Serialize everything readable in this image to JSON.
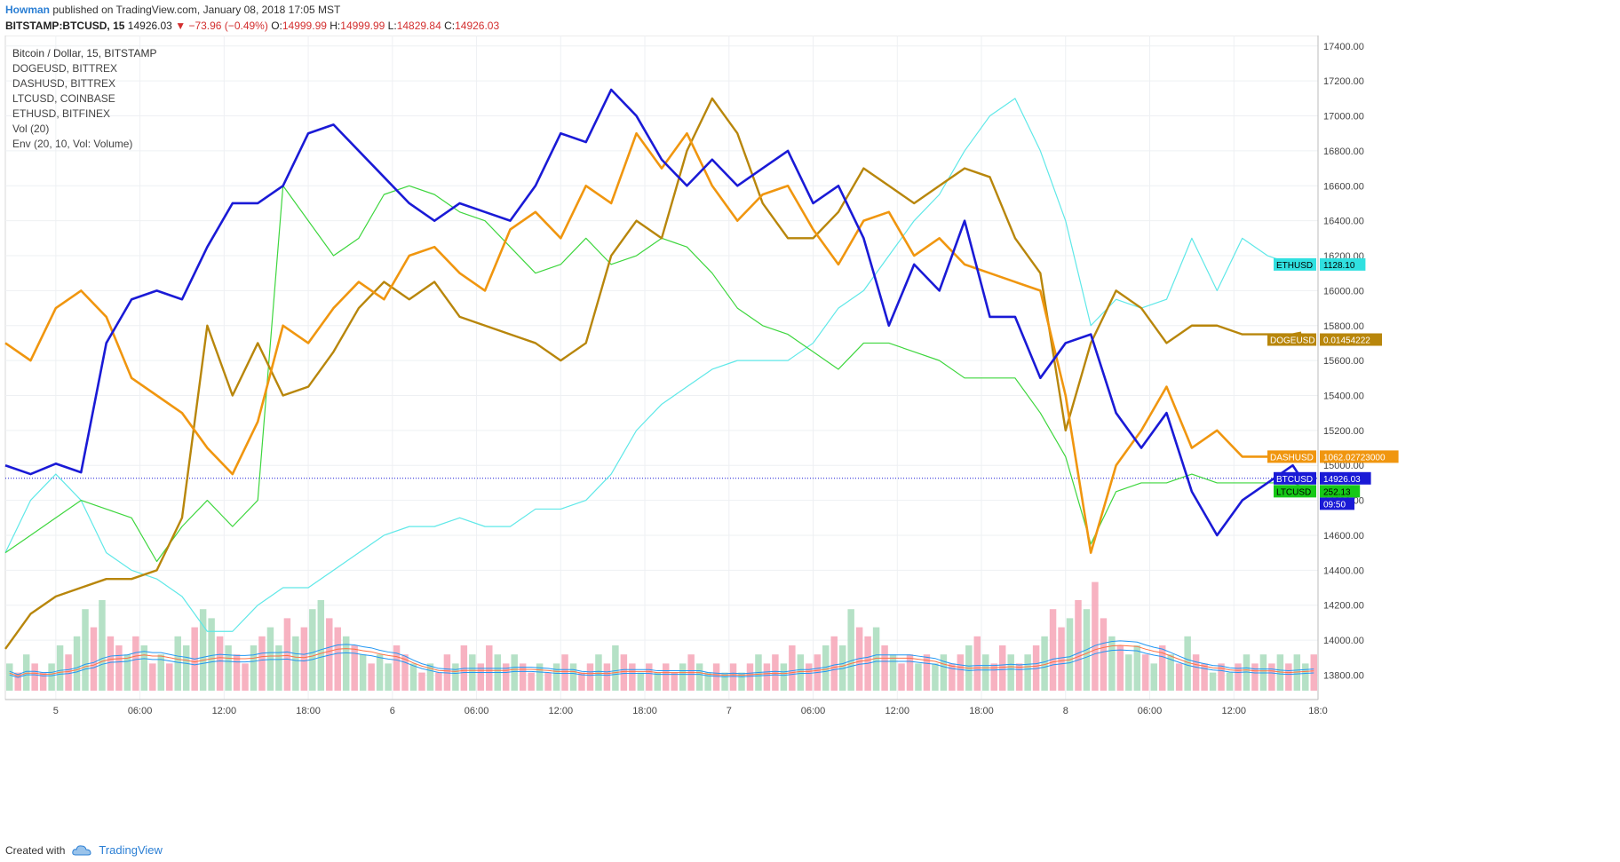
{
  "header": {
    "username": "Howman",
    "published_text": "published on TradingView.com, January 08, 2018 17:05 MST"
  },
  "quote": {
    "symbol": "BITSTAMP:BTCUSD, 15",
    "last": "14926.03",
    "change": "−73.96 (−0.49%)",
    "open_label": "O:",
    "open": "14999.99",
    "high_label": "H:",
    "high": "14999.99",
    "low_label": "L:",
    "low": "14829.84",
    "close_label": "C:",
    "close": "14926.03"
  },
  "legend": {
    "items": [
      "Bitcoin / Dollar, 15, BITSTAMP",
      "DOGEUSD, BITTREX",
      "DASHUSD, BITTREX",
      "LTCUSD, COINBASE",
      "ETHUSD, BITFINEX",
      "Vol (20)",
      "Env (20, 10, Vol: Volume)"
    ]
  },
  "footer": {
    "created_with": "Created with",
    "brand": "TradingView"
  },
  "chart_data": {
    "type": "line",
    "y_axis_position": "right",
    "ylim": [
      13660,
      17460
    ],
    "y_ticks": [
      13800,
      14000,
      14200,
      14400,
      14600,
      14800,
      15000,
      15200,
      15400,
      15600,
      15800,
      16000,
      16200,
      16400,
      16600,
      16800,
      17000,
      17200,
      17400
    ],
    "y_tick_labels": [
      "13800.00",
      "14000.00",
      "14200.00",
      "14400.00",
      "14600.00",
      "14800.00",
      "15000.00",
      "15200.00",
      "15400.00",
      "15600.00",
      "15800.00",
      "16000.00",
      "16200.00",
      "16400.00",
      "16600.00",
      "16800.00",
      "17000.00",
      "17200.00",
      "17400.00"
    ],
    "x_ticks": [
      {
        "label": "5",
        "pos": 6
      },
      {
        "label": "06:00",
        "pos": 16
      },
      {
        "label": "12:00",
        "pos": 26
      },
      {
        "label": "18:00",
        "pos": 36
      },
      {
        "label": "6",
        "pos": 46
      },
      {
        "label": "06:00",
        "pos": 56
      },
      {
        "label": "12:00",
        "pos": 66
      },
      {
        "label": "18:00",
        "pos": 76
      },
      {
        "label": "7",
        "pos": 86
      },
      {
        "label": "06:00",
        "pos": 96
      },
      {
        "label": "12:00",
        "pos": 106
      },
      {
        "label": "18:00",
        "pos": 116
      },
      {
        "label": "8",
        "pos": 126
      },
      {
        "label": "06:00",
        "pos": 136
      },
      {
        "label": "12:00",
        "pos": 146
      },
      {
        "label": "18:0",
        "pos": 156
      }
    ],
    "x_range": [
      0,
      156
    ],
    "grid": true,
    "last_price_line": 14926,
    "series": [
      {
        "name": "BTCUSD",
        "color": "#1a1ad6",
        "width": 2.6,
        "x": [
          0,
          3,
          6,
          9,
          12,
          15,
          18,
          21,
          24,
          27,
          30,
          33,
          36,
          39,
          42,
          45,
          48,
          51,
          54,
          57,
          60,
          63,
          66,
          69,
          72,
          75,
          78,
          81,
          84,
          87,
          90,
          93,
          96,
          99,
          102,
          105,
          108,
          111,
          114,
          117,
          120,
          123,
          126,
          129,
          132,
          135,
          138,
          141,
          144,
          147,
          150,
          153,
          154
        ],
        "y": [
          15000,
          14950,
          15010,
          14960,
          15700,
          15950,
          16000,
          15950,
          16250,
          16500,
          16500,
          16600,
          16900,
          16950,
          16800,
          16650,
          16500,
          16400,
          16500,
          16450,
          16400,
          16600,
          16900,
          16850,
          17150,
          17000,
          16750,
          16600,
          16750,
          16600,
          16700,
          16800,
          16500,
          16600,
          16300,
          15800,
          16150,
          16000,
          16400,
          15850,
          15850,
          15500,
          15700,
          15750,
          15300,
          15100,
          15300,
          14850,
          14600,
          14800,
          14900,
          15000,
          14926
        ]
      },
      {
        "name": "DOGEUSD",
        "color": "#b8860b",
        "width": 2.4,
        "x": [
          0,
          3,
          6,
          9,
          12,
          15,
          18,
          21,
          24,
          27,
          30,
          33,
          36,
          39,
          42,
          45,
          48,
          51,
          54,
          57,
          60,
          63,
          66,
          69,
          72,
          75,
          78,
          81,
          84,
          87,
          90,
          93,
          96,
          99,
          102,
          105,
          108,
          111,
          114,
          117,
          120,
          123,
          126,
          129,
          132,
          135,
          138,
          141,
          144,
          147,
          150,
          153,
          154
        ],
        "y": [
          13950,
          14150,
          14250,
          14300,
          14350,
          14350,
          14400,
          14700,
          15800,
          15400,
          15700,
          15400,
          15450,
          15650,
          15900,
          16050,
          15950,
          16050,
          15850,
          15800,
          15750,
          15700,
          15600,
          15700,
          16200,
          16400,
          16300,
          16800,
          17100,
          16900,
          16500,
          16300,
          16300,
          16450,
          16700,
          16600,
          16500,
          16600,
          16700,
          16650,
          16300,
          16100,
          15200,
          15700,
          16000,
          15900,
          15700,
          15800,
          15800,
          15750,
          15750,
          15750,
          15760
        ]
      },
      {
        "name": "DASHUSD",
        "color": "#f0960f",
        "width": 2.6,
        "x": [
          0,
          3,
          6,
          9,
          12,
          15,
          18,
          21,
          24,
          27,
          30,
          33,
          36,
          39,
          42,
          45,
          48,
          51,
          54,
          57,
          60,
          63,
          66,
          69,
          72,
          75,
          78,
          81,
          84,
          87,
          90,
          93,
          96,
          99,
          102,
          105,
          108,
          111,
          114,
          117,
          120,
          123,
          126,
          129,
          132,
          135,
          138,
          141,
          144,
          147,
          150,
          153,
          154
        ],
        "y": [
          15700,
          15600,
          15900,
          16000,
          15850,
          15500,
          15400,
          15300,
          15100,
          14950,
          15250,
          15800,
          15700,
          15900,
          16050,
          15950,
          16200,
          16250,
          16100,
          16000,
          16350,
          16450,
          16300,
          16600,
          16500,
          16900,
          16700,
          16900,
          16600,
          16400,
          16550,
          16600,
          16350,
          16150,
          16400,
          16450,
          16200,
          16300,
          16150,
          16100,
          16050,
          16000,
          15400,
          14500,
          15000,
          15200,
          15450,
          15100,
          15200,
          15050,
          15050,
          15060,
          15062
        ]
      },
      {
        "name": "LTCUSD",
        "color": "#3ed63e",
        "width": 1.2,
        "x": [
          0,
          3,
          6,
          9,
          12,
          15,
          18,
          21,
          24,
          27,
          30,
          33,
          36,
          39,
          42,
          45,
          48,
          51,
          54,
          57,
          60,
          63,
          66,
          69,
          72,
          75,
          78,
          81,
          84,
          87,
          90,
          93,
          96,
          99,
          102,
          105,
          108,
          111,
          114,
          117,
          120,
          123,
          126,
          129,
          132,
          135,
          138,
          141,
          144,
          147,
          150,
          153,
          154
        ],
        "y": [
          14500,
          14600,
          14700,
          14800,
          14750,
          14700,
          14450,
          14650,
          14800,
          14650,
          14800,
          16600,
          16400,
          16200,
          16300,
          16550,
          16600,
          16550,
          16450,
          16400,
          16250,
          16100,
          16150,
          16300,
          16150,
          16200,
          16300,
          16250,
          16100,
          15900,
          15800,
          15750,
          15650,
          15550,
          15700,
          15700,
          15650,
          15600,
          15500,
          15500,
          15500,
          15300,
          15050,
          14550,
          14850,
          14900,
          14900,
          14950,
          14900,
          14900,
          14900,
          14900,
          14880
        ]
      },
      {
        "name": "ETHUSD",
        "color": "#5fe8e8",
        "width": 1.2,
        "x": [
          0,
          3,
          6,
          9,
          12,
          15,
          18,
          21,
          24,
          27,
          30,
          33,
          36,
          39,
          42,
          45,
          48,
          51,
          54,
          57,
          60,
          63,
          66,
          69,
          72,
          75,
          78,
          81,
          84,
          87,
          90,
          93,
          96,
          99,
          102,
          105,
          108,
          111,
          114,
          117,
          120,
          123,
          126,
          129,
          132,
          135,
          138,
          141,
          144,
          147,
          150,
          153,
          154
        ],
        "y": [
          14500,
          14800,
          14950,
          14800,
          14500,
          14400,
          14350,
          14250,
          14050,
          14050,
          14200,
          14300,
          14300,
          14400,
          14500,
          14600,
          14650,
          14650,
          14700,
          14650,
          14650,
          14750,
          14750,
          14800,
          14950,
          15200,
          15350,
          15450,
          15550,
          15600,
          15600,
          15600,
          15700,
          15900,
          16000,
          16200,
          16400,
          16550,
          16800,
          17000,
          17100,
          16800,
          16400,
          15800,
          15950,
          15900,
          15950,
          16300,
          16000,
          16300,
          16200,
          16150,
          16150
        ]
      }
    ],
    "price_labels": [
      {
        "text": "ETHUSD",
        "value_text": "1128.10",
        "y": 16150,
        "bg": "#30e0e0",
        "fg": "#000"
      },
      {
        "text": "DOGEUSD",
        "value_text": "0.01454222",
        "y": 15720,
        "bg": "#b8860b",
        "fg": "#fff"
      },
      {
        "text": "DASHUSD",
        "value_text": "1062.02723000",
        "y": 15050,
        "bg": "#f0960f",
        "fg": "#fff"
      },
      {
        "text": "BTCUSD",
        "value_text": "14926.03",
        "y": 14926,
        "bg": "#1a1ad6",
        "fg": "#fff"
      },
      {
        "text": "",
        "value_text": "09:50",
        "y": 14852,
        "bg": "#1a1ad6",
        "fg": "#fff"
      },
      {
        "text": "LTCUSD",
        "value_text": "252.13",
        "y": 14852,
        "bg": "#16c816",
        "fg": "#000"
      }
    ],
    "volume": {
      "name": "Vol (20)",
      "up_color": "#a8dcbc",
      "down_color": "#f6a4b6",
      "bars_count": 156,
      "values": [
        0.3,
        0.2,
        0.4,
        0.3,
        0.2,
        0.3,
        0.5,
        0.4,
        0.6,
        0.9,
        0.7,
        1.0,
        0.6,
        0.5,
        0.4,
        0.6,
        0.5,
        0.3,
        0.4,
        0.3,
        0.6,
        0.5,
        0.7,
        0.9,
        0.8,
        0.6,
        0.5,
        0.4,
        0.3,
        0.5,
        0.6,
        0.7,
        0.5,
        0.8,
        0.6,
        0.7,
        0.9,
        1.0,
        0.8,
        0.7,
        0.6,
        0.5,
        0.4,
        0.3,
        0.4,
        0.3,
        0.5,
        0.4,
        0.3,
        0.2,
        0.3,
        0.2,
        0.4,
        0.3,
        0.5,
        0.4,
        0.3,
        0.5,
        0.4,
        0.3,
        0.4,
        0.3,
        0.2,
        0.3,
        0.2,
        0.3,
        0.4,
        0.3,
        0.2,
        0.3,
        0.4,
        0.3,
        0.5,
        0.4,
        0.3,
        0.2,
        0.3,
        0.2,
        0.3,
        0.2,
        0.3,
        0.4,
        0.3,
        0.2,
        0.3,
        0.2,
        0.3,
        0.2,
        0.3,
        0.4,
        0.3,
        0.4,
        0.3,
        0.5,
        0.4,
        0.3,
        0.4,
        0.5,
        0.6,
        0.5,
        0.9,
        0.7,
        0.6,
        0.7,
        0.5,
        0.4,
        0.3,
        0.4,
        0.3,
        0.4,
        0.3,
        0.4,
        0.3,
        0.4,
        0.5,
        0.6,
        0.4,
        0.3,
        0.5,
        0.4,
        0.3,
        0.4,
        0.5,
        0.6,
        0.9,
        0.7,
        0.8,
        1.0,
        0.9,
        1.2,
        0.8,
        0.6,
        0.5,
        0.4,
        0.5,
        0.4,
        0.3,
        0.5,
        0.4,
        0.3,
        0.6,
        0.4,
        0.3,
        0.2,
        0.3,
        0.2,
        0.3,
        0.4,
        0.3,
        0.4,
        0.3,
        0.4,
        0.3,
        0.4,
        0.3,
        0.4
      ],
      "up_flags": [
        1,
        0,
        1,
        0,
        0,
        1,
        1,
        0,
        1,
        1,
        0,
        1,
        0,
        0,
        1,
        0,
        1,
        0,
        1,
        0,
        1,
        1,
        0,
        1,
        1,
        0,
        1,
        0,
        0,
        1,
        0,
        1,
        1,
        0,
        1,
        0,
        1,
        1,
        0,
        0,
        1,
        0,
        1,
        0,
        1,
        1,
        0,
        0,
        1,
        0,
        1,
        0,
        0,
        1,
        0,
        1,
        0,
        0,
        1,
        0,
        1,
        0,
        0,
        1,
        0,
        1,
        0,
        1,
        0,
        0,
        1,
        0,
        1,
        0,
        0,
        1,
        0,
        1,
        0,
        0,
        1,
        0,
        1,
        1,
        0,
        1,
        0,
        1,
        0,
        1,
        0,
        0,
        1,
        0,
        1,
        0,
        0,
        1,
        0,
        1,
        1,
        0,
        0,
        1,
        0,
        1,
        0,
        0,
        1,
        0,
        1,
        1,
        0,
        0,
        1,
        0,
        1,
        0,
        0,
        1,
        0,
        1,
        0,
        1,
        0,
        0,
        1,
        0,
        1,
        0,
        0,
        1,
        0,
        1,
        1,
        0,
        1,
        0,
        1,
        0,
        1,
        0,
        0,
        1,
        0,
        1,
        0,
        1,
        0,
        1,
        0,
        1,
        0,
        1,
        1,
        0
      ]
    }
  }
}
